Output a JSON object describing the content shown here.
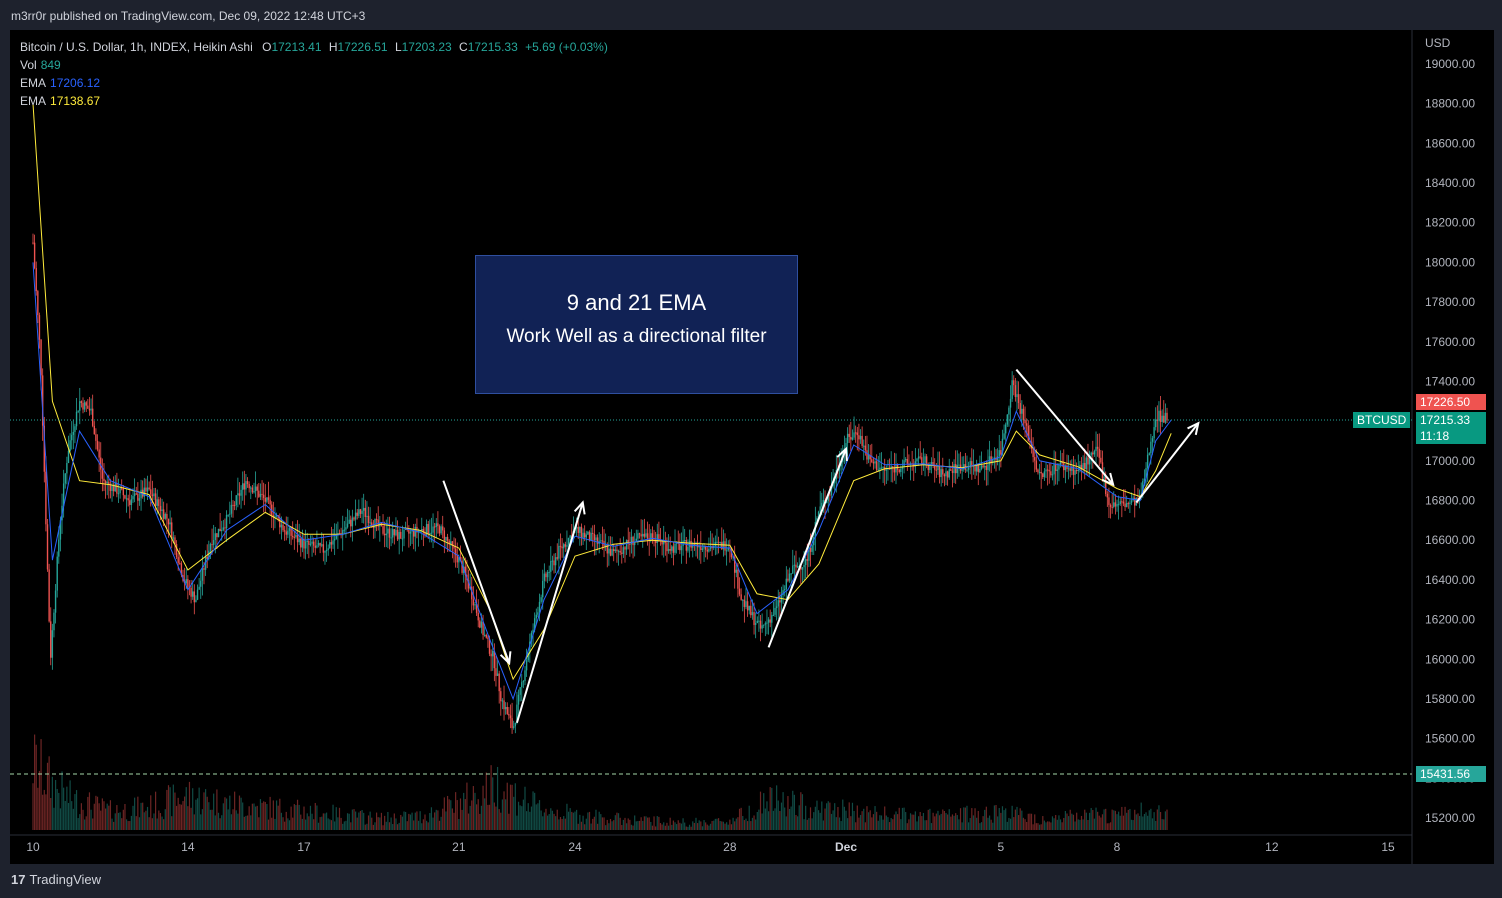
{
  "header": {
    "publisher": "m3rr0r published on TradingView.com, Dec 09, 2022 12:48 UTC+3"
  },
  "legend": {
    "symbol": "Bitcoin / U.S. Dollar, 1h, INDEX, Heikin Ashi",
    "o_label": "O",
    "o": "17213.41",
    "h_label": "H",
    "h": "17226.51",
    "l_label": "L",
    "l": "17203.23",
    "c_label": "C",
    "c": "17215.33",
    "change": "+5.69 (+0.03%)",
    "vol_label": "Vol",
    "vol": "849",
    "ema1_label": "EMA",
    "ema1": "17206.12",
    "ema2_label": "EMA",
    "ema2": "17138.67"
  },
  "annotation": {
    "title": "9 and 21 EMA",
    "subtitle": "Work Well as a directional filter"
  },
  "price_labels": {
    "high": "17226.50",
    "symbol": "BTCUSD",
    "last": "17215.33",
    "countdown": "11:18",
    "low": "15431.56"
  },
  "footer": {
    "brand": "TradingView",
    "logo": "17"
  },
  "colors": {
    "up": "#26a69a",
    "down": "#ef5350",
    "ema_fast": "#2962ff",
    "ema_slow": "#ffeb3b",
    "annotation_bg": "#112255",
    "background": "#000000"
  },
  "chart_data": {
    "type": "candlestick",
    "title": "",
    "currency_label": "USD",
    "y_ticks": [
      "15200.00",
      "15400.00",
      "15600.00",
      "15800.00",
      "16000.00",
      "16200.00",
      "16400.00",
      "16600.00",
      "16800.00",
      "17000.00",
      "17200.00",
      "17400.00",
      "17600.00",
      "17800.00",
      "18000.00",
      "18200.00",
      "18400.00",
      "18600.00",
      "18800.00",
      "19000.00"
    ],
    "ylim": [
      15100,
      19100
    ],
    "x_ticks": [
      {
        "label": "10",
        "t": 0
      },
      {
        "label": "14",
        "t": 4
      },
      {
        "label": "17",
        "t": 7
      },
      {
        "label": "21",
        "t": 11
      },
      {
        "label": "24",
        "t": 14
      },
      {
        "label": "28",
        "t": 18
      },
      {
        "label": "Dec",
        "t": 21
      },
      {
        "label": "5",
        "t": 25
      },
      {
        "label": "8",
        "t": 28
      },
      {
        "label": "12",
        "t": 32
      },
      {
        "label": "15",
        "t": 35
      }
    ],
    "xlim": [
      -0.2,
      35.6
    ],
    "price_path": [
      [
        0,
        18100
      ],
      [
        0.2,
        17500
      ],
      [
        0.45,
        16000
      ],
      [
        0.7,
        16700
      ],
      [
        0.9,
        17050
      ],
      [
        1.2,
        17300
      ],
      [
        1.5,
        17250
      ],
      [
        1.8,
        16900
      ],
      [
        2.2,
        16850
      ],
      [
        2.5,
        16800
      ],
      [
        3.0,
        16850
      ],
      [
        3.5,
        16700
      ],
      [
        3.9,
        16400
      ],
      [
        4.2,
        16300
      ],
      [
        4.6,
        16600
      ],
      [
        5.0,
        16700
      ],
      [
        5.5,
        16900
      ],
      [
        6.0,
        16800
      ],
      [
        6.5,
        16650
      ],
      [
        7.0,
        16580
      ],
      [
        7.5,
        16550
      ],
      [
        8.0,
        16650
      ],
      [
        8.5,
        16750
      ],
      [
        9.0,
        16650
      ],
      [
        9.5,
        16620
      ],
      [
        10.0,
        16650
      ],
      [
        10.5,
        16660
      ],
      [
        11.0,
        16500
      ],
      [
        11.3,
        16350
      ],
      [
        11.6,
        16150
      ],
      [
        11.9,
        16000
      ],
      [
        12.1,
        15800
      ],
      [
        12.4,
        15650
      ],
      [
        12.8,
        16050
      ],
      [
        13.2,
        16400
      ],
      [
        13.6,
        16550
      ],
      [
        14.0,
        16650
      ],
      [
        14.5,
        16600
      ],
      [
        15.0,
        16530
      ],
      [
        15.5,
        16600
      ],
      [
        16.0,
        16620
      ],
      [
        16.5,
        16560
      ],
      [
        17.0,
        16580
      ],
      [
        17.5,
        16570
      ],
      [
        18.0,
        16580
      ],
      [
        18.3,
        16300
      ],
      [
        18.8,
        16150
      ],
      [
        19.2,
        16250
      ],
      [
        19.6,
        16450
      ],
      [
        20.0,
        16500
      ],
      [
        20.3,
        16750
      ],
      [
        20.6,
        16850
      ],
      [
        21.0,
        17100
      ],
      [
        21.3,
        17150
      ],
      [
        21.6,
        17000
      ],
      [
        22.0,
        16950
      ],
      [
        22.5,
        16980
      ],
      [
        23.0,
        17000
      ],
      [
        23.5,
        16930
      ],
      [
        24.0,
        16980
      ],
      [
        24.5,
        16960
      ],
      [
        25.0,
        17050
      ],
      [
        25.3,
        17400
      ],
      [
        25.6,
        17200
      ],
      [
        26.0,
        16920
      ],
      [
        26.5,
        16980
      ],
      [
        27.0,
        16950
      ],
      [
        27.5,
        17050
      ],
      [
        27.8,
        16780
      ],
      [
        28.2,
        16780
      ],
      [
        28.6,
        16800
      ],
      [
        29.0,
        17230
      ],
      [
        29.3,
        17215
      ]
    ],
    "ema_fast_path": [
      [
        0,
        18000
      ],
      [
        0.5,
        16500
      ],
      [
        1.2,
        17150
      ],
      [
        2.0,
        16900
      ],
      [
        3.0,
        16820
      ],
      [
        4.0,
        16350
      ],
      [
        5.0,
        16650
      ],
      [
        6.0,
        16780
      ],
      [
        7.0,
        16600
      ],
      [
        8.0,
        16630
      ],
      [
        9.0,
        16690
      ],
      [
        10.0,
        16640
      ],
      [
        11.0,
        16520
      ],
      [
        11.8,
        16100
      ],
      [
        12.4,
        15800
      ],
      [
        13.2,
        16300
      ],
      [
        14.0,
        16620
      ],
      [
        15.0,
        16570
      ],
      [
        16.0,
        16610
      ],
      [
        17.0,
        16575
      ],
      [
        18.0,
        16560
      ],
      [
        18.7,
        16230
      ],
      [
        19.5,
        16350
      ],
      [
        20.3,
        16650
      ],
      [
        21.2,
        17080
      ],
      [
        22.0,
        16980
      ],
      [
        23.0,
        16985
      ],
      [
        24.0,
        16960
      ],
      [
        25.0,
        17020
      ],
      [
        25.4,
        17250
      ],
      [
        26.0,
        17000
      ],
      [
        27.0,
        16960
      ],
      [
        28.0,
        16820
      ],
      [
        28.6,
        16800
      ],
      [
        29.0,
        17100
      ],
      [
        29.4,
        17206
      ]
    ],
    "ema_slow_path": [
      [
        0,
        18800
      ],
      [
        0.5,
        17300
      ],
      [
        1.2,
        16900
      ],
      [
        2.0,
        16880
      ],
      [
        3.0,
        16830
      ],
      [
        4.0,
        16450
      ],
      [
        5.0,
        16600
      ],
      [
        6.0,
        16740
      ],
      [
        7.0,
        16630
      ],
      [
        8.0,
        16630
      ],
      [
        9.0,
        16680
      ],
      [
        10.0,
        16650
      ],
      [
        11.0,
        16560
      ],
      [
        11.8,
        16250
      ],
      [
        12.4,
        15900
      ],
      [
        13.2,
        16150
      ],
      [
        14.0,
        16520
      ],
      [
        15.0,
        16580
      ],
      [
        16.0,
        16600
      ],
      [
        17.0,
        16585
      ],
      [
        18.0,
        16575
      ],
      [
        18.7,
        16330
      ],
      [
        19.5,
        16300
      ],
      [
        20.3,
        16480
      ],
      [
        21.2,
        16900
      ],
      [
        22.0,
        16960
      ],
      [
        23.0,
        16980
      ],
      [
        24.0,
        16965
      ],
      [
        25.0,
        17000
      ],
      [
        25.4,
        17150
      ],
      [
        26.0,
        17030
      ],
      [
        27.0,
        16970
      ],
      [
        28.0,
        16860
      ],
      [
        28.6,
        16820
      ],
      [
        29.0,
        16950
      ],
      [
        29.4,
        17139
      ]
    ],
    "arrows": [
      {
        "from": [
          10.6,
          16900
        ],
        "to": [
          12.3,
          15980
        ]
      },
      {
        "from": [
          12.5,
          15680
        ],
        "to": [
          14.2,
          16790
        ]
      },
      {
        "from": [
          19.0,
          16060
        ],
        "to": [
          21.0,
          17060
        ]
      },
      {
        "from": [
          25.4,
          17460
        ],
        "to": [
          27.9,
          16880
        ]
      },
      {
        "from": [
          28.5,
          16790
        ],
        "to": [
          30.1,
          17190
        ]
      }
    ],
    "volume_profile": [
      [
        0,
        90
      ],
      [
        0.5,
        60
      ],
      [
        1,
        40
      ],
      [
        2,
        25
      ],
      [
        3,
        30
      ],
      [
        4,
        45
      ],
      [
        5,
        35
      ],
      [
        6,
        30
      ],
      [
        7,
        25
      ],
      [
        8,
        20
      ],
      [
        9,
        15
      ],
      [
        10,
        18
      ],
      [
        11,
        35
      ],
      [
        12,
        60
      ],
      [
        13,
        30
      ],
      [
        14,
        20
      ],
      [
        15,
        15
      ],
      [
        16,
        12
      ],
      [
        17,
        10
      ],
      [
        18,
        12
      ],
      [
        19,
        40
      ],
      [
        20,
        30
      ],
      [
        21,
        25
      ],
      [
        22,
        20
      ],
      [
        23,
        18
      ],
      [
        24,
        20
      ],
      [
        25,
        25
      ],
      [
        26,
        15
      ],
      [
        27,
        18
      ],
      [
        28,
        20
      ],
      [
        29,
        25
      ]
    ]
  }
}
